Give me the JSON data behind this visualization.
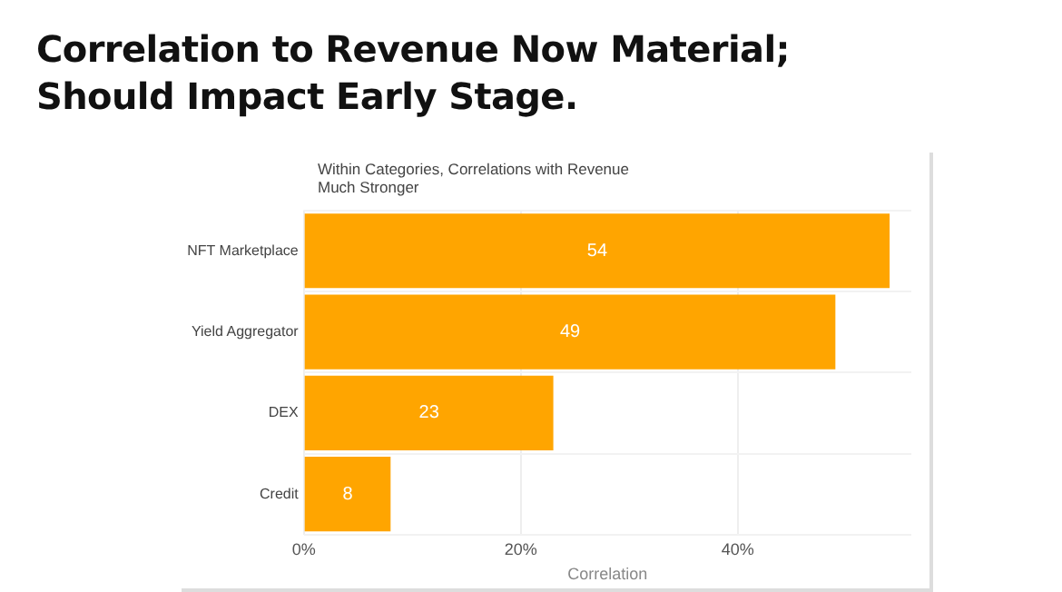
{
  "chart_data": {
    "type": "bar",
    "orientation": "horizontal",
    "title": "Correlation to Revenue Now Material;\nShould Impact Early Stage.",
    "subtitle": "Within Categories, Correlations with Revenue\nMuch Stronger",
    "xlabel": "Correlation",
    "categories": [
      "NFT Marketplace",
      "Yield Aggregator",
      "DEX",
      "Credit"
    ],
    "values": [
      54,
      49,
      23,
      8
    ],
    "color": "#ffa500",
    "data_labels": true,
    "xlim": [
      0,
      56
    ],
    "xticks": [
      {
        "value": 0,
        "label": "0%"
      },
      {
        "value": 20,
        "label": "20%"
      },
      {
        "value": 40,
        "label": "40%"
      }
    ],
    "grid": true,
    "legend": false
  }
}
